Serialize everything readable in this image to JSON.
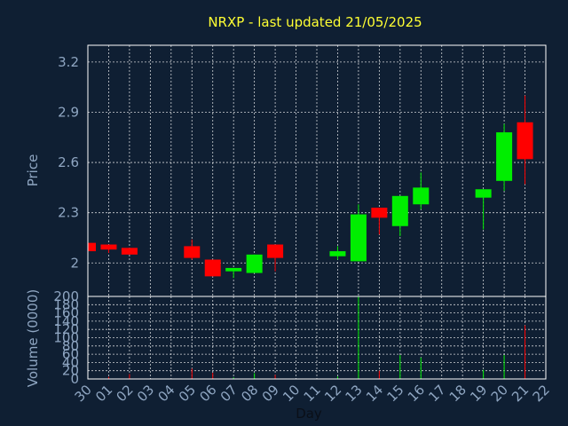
{
  "chart_data": {
    "title": "NRXP - last updated 21/05/2025",
    "type": "candlestick",
    "colors": {
      "background": "#0f1f33",
      "title": "#ffff33",
      "axis_text": "#8fa6c2",
      "up": "#00ee00",
      "down": "#ff0000",
      "grid": "#ffffff",
      "frame": "#ffffff"
    },
    "grid": true,
    "xlabel": "Day",
    "x_ticks": [
      "30",
      "01",
      "02",
      "03",
      "04",
      "05",
      "06",
      "07",
      "08",
      "09",
      "10",
      "11",
      "12",
      "13",
      "14",
      "15",
      "16",
      "17",
      "18",
      "19",
      "20",
      "21",
      "22"
    ],
    "price_panel": {
      "ylabel": "Price",
      "ylim": [
        1.8,
        3.3
      ],
      "y_ticks": [
        "3.2",
        "2.9",
        "2.6",
        "2.3",
        "2"
      ],
      "y_tick_values": [
        3.2,
        2.9,
        2.6,
        2.3,
        2.0
      ]
    },
    "volume_panel": {
      "ylabel": "Volume (0000)",
      "ylim": [
        0,
        200
      ],
      "y_ticks": [
        "200",
        "180",
        "160",
        "140",
        "120",
        "100",
        "80",
        "60",
        "40",
        "20",
        "0"
      ],
      "y_tick_values": [
        200,
        180,
        160,
        140,
        120,
        100,
        80,
        60,
        40,
        20,
        0
      ]
    },
    "candles": [
      {
        "day": "30",
        "open": 2.12,
        "high": 2.12,
        "low": 2.07,
        "close": 2.07,
        "volume": 0
      },
      {
        "day": "01",
        "open": 2.11,
        "high": 2.11,
        "low": 2.06,
        "close": 2.08,
        "volume": 5
      },
      {
        "day": "02",
        "open": 2.09,
        "high": 2.09,
        "low": 2.05,
        "close": 2.05,
        "volume": 12
      },
      {
        "day": "05",
        "open": 2.1,
        "high": 2.14,
        "low": 2.02,
        "close": 2.03,
        "volume": 25
      },
      {
        "day": "06",
        "open": 2.02,
        "high": 2.02,
        "low": 1.92,
        "close": 1.92,
        "volume": 15
      },
      {
        "day": "07",
        "open": 1.95,
        "high": 1.97,
        "low": 1.91,
        "close": 1.97,
        "volume": 4
      },
      {
        "day": "08",
        "open": 1.94,
        "high": 2.05,
        "low": 1.94,
        "close": 2.05,
        "volume": 14
      },
      {
        "day": "09",
        "open": 2.11,
        "high": 2.11,
        "low": 1.95,
        "close": 2.03,
        "volume": 10
      },
      {
        "day": "12",
        "open": 2.04,
        "high": 2.1,
        "low": 2.02,
        "close": 2.07,
        "volume": 6
      },
      {
        "day": "13",
        "open": 2.01,
        "high": 2.35,
        "low": 2.01,
        "close": 2.29,
        "volume": 200
      },
      {
        "day": "14",
        "open": 2.33,
        "high": 2.33,
        "low": 2.17,
        "close": 2.27,
        "volume": 20
      },
      {
        "day": "15",
        "open": 2.22,
        "high": 2.4,
        "low": 2.16,
        "close": 2.4,
        "volume": 58
      },
      {
        "day": "16",
        "open": 2.35,
        "high": 2.54,
        "low": 2.32,
        "close": 2.45,
        "volume": 52
      },
      {
        "day": "19",
        "open": 2.39,
        "high": 2.44,
        "low": 2.2,
        "close": 2.44,
        "volume": 22
      },
      {
        "day": "20",
        "open": 2.49,
        "high": 2.83,
        "low": 2.43,
        "close": 2.78,
        "volume": 58
      },
      {
        "day": "21",
        "open": 2.84,
        "high": 3.0,
        "low": 2.47,
        "close": 2.62,
        "volume": 130
      }
    ]
  }
}
